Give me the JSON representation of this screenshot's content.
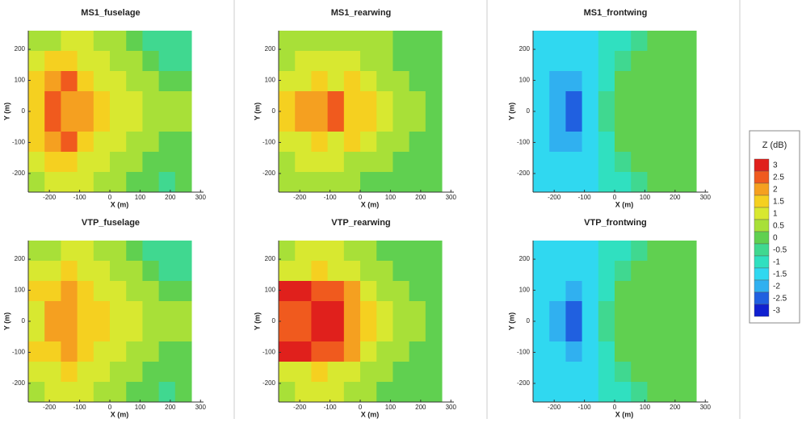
{
  "chart_data": [
    {
      "type": "heatmap",
      "title": "MS1_fuselage",
      "xlabel": "X (m)",
      "ylabel": "Y (m)",
      "x": [
        -243,
        -189,
        -135,
        -81,
        -27,
        27,
        81,
        135,
        189,
        243
      ],
      "y": [
        227.5,
        162.5,
        97.5,
        32.5,
        -32.5,
        -97.5,
        -162.5,
        -227.5
      ],
      "z": [
        [
          0.5,
          0.5,
          1,
          1,
          0.5,
          0.5,
          0,
          -0.5,
          -0.5,
          -0.5
        ],
        [
          1,
          1.5,
          1.5,
          1,
          1,
          0.5,
          0.5,
          0,
          -0.5,
          -0.5
        ],
        [
          1.5,
          2,
          2.5,
          1.5,
          1,
          1,
          0.5,
          0.5,
          0,
          0
        ],
        [
          1.5,
          2.5,
          2,
          2,
          1.5,
          1,
          1,
          0.5,
          0.5,
          0.5
        ],
        [
          1.5,
          2.5,
          2,
          2,
          1.5,
          1,
          1,
          0.5,
          0.5,
          0.5
        ],
        [
          1.5,
          2,
          2.5,
          1.5,
          1,
          1,
          0.5,
          0.5,
          0,
          0
        ],
        [
          1,
          1.5,
          1.5,
          1,
          1,
          0.5,
          0.5,
          0,
          0,
          0
        ],
        [
          0.5,
          1,
          1,
          1,
          0.5,
          0.5,
          0,
          0,
          -0.5,
          0
        ]
      ],
      "xlim": [
        -270,
        310
      ],
      "ylim": [
        -260,
        260
      ],
      "xticks": [
        -200,
        -100,
        0,
        100,
        200,
        300
      ],
      "yticks": [
        -200,
        -100,
        0,
        100,
        200
      ]
    },
    {
      "type": "heatmap",
      "title": "MS1_rearwing",
      "xlabel": "X (m)",
      "ylabel": "Y (m)",
      "x": [
        -243,
        -189,
        -135,
        -81,
        -27,
        27,
        81,
        135,
        189,
        243
      ],
      "y": [
        227.5,
        162.5,
        97.5,
        32.5,
        -32.5,
        -97.5,
        -162.5,
        -227.5
      ],
      "z": [
        [
          0.5,
          0.5,
          0.5,
          0.5,
          0.5,
          0.5,
          0.5,
          0,
          0,
          0
        ],
        [
          0.5,
          1,
          1,
          1,
          1,
          0.5,
          0.5,
          0,
          0,
          0
        ],
        [
          1,
          1,
          1.5,
          1,
          1.5,
          1,
          0.5,
          0.5,
          0,
          0
        ],
        [
          1.5,
          2,
          2,
          2.5,
          1.5,
          1.5,
          1,
          0.5,
          0.5,
          0
        ],
        [
          1.5,
          2,
          2,
          2.5,
          1.5,
          1.5,
          1,
          0.5,
          0.5,
          0
        ],
        [
          1,
          1,
          1.5,
          1,
          1.5,
          1,
          0.5,
          0.5,
          0,
          0
        ],
        [
          0.5,
          1,
          1,
          1,
          0.5,
          0.5,
          0.5,
          0,
          0,
          0
        ],
        [
          0.5,
          0.5,
          0.5,
          0.5,
          0.5,
          0,
          0,
          0,
          0,
          0
        ]
      ],
      "xlim": [
        -270,
        310
      ],
      "ylim": [
        -260,
        260
      ],
      "xticks": [
        -200,
        -100,
        0,
        100,
        200,
        300
      ],
      "yticks": [
        -200,
        -100,
        0,
        100,
        200
      ]
    },
    {
      "type": "heatmap",
      "title": "MS1_frontwing",
      "xlabel": "X (m)",
      "ylabel": "Y (m)",
      "x": [
        -243,
        -189,
        -135,
        -81,
        -27,
        27,
        81,
        135,
        189,
        243
      ],
      "y": [
        227.5,
        162.5,
        97.5,
        32.5,
        -32.5,
        -97.5,
        -162.5,
        -227.5
      ],
      "z": [
        [
          -1.5,
          -1.5,
          -1.5,
          -1.5,
          -1,
          -1,
          -0.5,
          0,
          0,
          0
        ],
        [
          -1.5,
          -1.5,
          -1.5,
          -1.5,
          -1,
          -0.5,
          0,
          0,
          0,
          0
        ],
        [
          -1.5,
          -2,
          -2,
          -1.5,
          -1,
          0,
          0,
          0,
          0,
          0
        ],
        [
          -1.5,
          -2,
          -2.5,
          -1.5,
          -0.5,
          0,
          0,
          0,
          0,
          0
        ],
        [
          -1.5,
          -2,
          -2.5,
          -1.5,
          -0.5,
          0,
          0,
          0,
          0,
          0
        ],
        [
          -1.5,
          -2,
          -2,
          -1.5,
          -1,
          0,
          0,
          0,
          0,
          0
        ],
        [
          -1.5,
          -1.5,
          -1.5,
          -1.5,
          -1,
          -0.5,
          0,
          0,
          0,
          0
        ],
        [
          -1.5,
          -1.5,
          -1.5,
          -1.5,
          -1,
          -1,
          -0.5,
          0,
          0,
          0
        ]
      ],
      "xlim": [
        -270,
        310
      ],
      "ylim": [
        -260,
        260
      ],
      "xticks": [
        -200,
        -100,
        0,
        100,
        200,
        300
      ],
      "yticks": [
        -200,
        -100,
        0,
        100,
        200
      ]
    },
    {
      "type": "heatmap",
      "title": "VTP_fuselage",
      "xlabel": "X (m)",
      "ylabel": "Y (m)",
      "x": [
        -243,
        -189,
        -135,
        -81,
        -27,
        27,
        81,
        135,
        189,
        243
      ],
      "y": [
        227.5,
        162.5,
        97.5,
        32.5,
        -32.5,
        -97.5,
        -162.5,
        -227.5
      ],
      "z": [
        [
          0.5,
          0.5,
          1,
          1,
          0.5,
          0.5,
          0,
          -0.5,
          -0.5,
          -0.5
        ],
        [
          1,
          1,
          1.5,
          1,
          1,
          0.5,
          0.5,
          0,
          -0.5,
          -0.5
        ],
        [
          1.5,
          1.5,
          2,
          1.5,
          1,
          1,
          0.5,
          0.5,
          0,
          0
        ],
        [
          1,
          2,
          2,
          1.5,
          1.5,
          1,
          1,
          0.5,
          0.5,
          0.5
        ],
        [
          1,
          2,
          2,
          1.5,
          1.5,
          1,
          1,
          0.5,
          0.5,
          0.5
        ],
        [
          1.5,
          1.5,
          2,
          1.5,
          1,
          1,
          0.5,
          0.5,
          0,
          0
        ],
        [
          1,
          1,
          1.5,
          1,
          1,
          0.5,
          0.5,
          0,
          0,
          0
        ],
        [
          0.5,
          1,
          1,
          1,
          0.5,
          0.5,
          0,
          0,
          -0.5,
          0
        ]
      ],
      "xlim": [
        -270,
        310
      ],
      "ylim": [
        -260,
        260
      ],
      "xticks": [
        -200,
        -100,
        0,
        100,
        200,
        300
      ],
      "yticks": [
        -200,
        -100,
        0,
        100,
        200
      ]
    },
    {
      "type": "heatmap",
      "title": "VTP_rearwing",
      "xlabel": "X (m)",
      "ylabel": "Y (m)",
      "x": [
        -243,
        -189,
        -135,
        -81,
        -27,
        27,
        81,
        135,
        189,
        243
      ],
      "y": [
        227.5,
        162.5,
        97.5,
        32.5,
        -32.5,
        -97.5,
        -162.5,
        -227.5
      ],
      "z": [
        [
          0.5,
          1,
          1,
          1,
          0.5,
          0.5,
          0,
          0,
          0,
          0
        ],
        [
          1,
          1,
          1.5,
          1,
          1,
          0.5,
          0.5,
          0,
          0,
          0
        ],
        [
          3,
          3,
          2.5,
          2.5,
          2,
          1,
          0.5,
          0.5,
          0,
          0
        ],
        [
          2.5,
          2.5,
          3,
          3,
          2,
          1.5,
          1,
          0.5,
          0.5,
          0
        ],
        [
          2.5,
          2.5,
          3,
          3,
          2,
          1.5,
          1,
          0.5,
          0.5,
          0
        ],
        [
          3,
          3,
          2.5,
          2.5,
          2,
          1,
          0.5,
          0.5,
          0,
          0
        ],
        [
          1,
          1,
          1.5,
          1,
          1,
          0.5,
          0.5,
          0,
          0,
          0
        ],
        [
          0.5,
          1,
          1,
          1,
          0.5,
          0.5,
          0,
          0,
          0,
          0
        ]
      ],
      "xlim": [
        -270,
        310
      ],
      "ylim": [
        -260,
        260
      ],
      "xticks": [
        -200,
        -100,
        0,
        100,
        200,
        300
      ],
      "yticks": [
        -200,
        -100,
        0,
        100,
        200
      ]
    },
    {
      "type": "heatmap",
      "title": "VTP_frontwing",
      "xlabel": "X (m)",
      "ylabel": "Y (m)",
      "x": [
        -243,
        -189,
        -135,
        -81,
        -27,
        27,
        81,
        135,
        189,
        243
      ],
      "y": [
        227.5,
        162.5,
        97.5,
        32.5,
        -32.5,
        -97.5,
        -162.5,
        -227.5
      ],
      "z": [
        [
          -1.5,
          -1.5,
          -1.5,
          -1.5,
          -1,
          -1,
          -0.5,
          0,
          0,
          0
        ],
        [
          -1.5,
          -1.5,
          -1.5,
          -1.5,
          -1,
          -0.5,
          0,
          0,
          0,
          0
        ],
        [
          -1.5,
          -1.5,
          -2,
          -1.5,
          -1,
          0,
          0,
          0,
          0,
          0
        ],
        [
          -1.5,
          -2,
          -2.5,
          -1.5,
          -0.5,
          0,
          0,
          0,
          0,
          0
        ],
        [
          -1.5,
          -2,
          -2.5,
          -1.5,
          -0.5,
          0,
          0,
          0,
          0,
          0
        ],
        [
          -1.5,
          -1.5,
          -2,
          -1.5,
          -1,
          0,
          0,
          0,
          0,
          0
        ],
        [
          -1.5,
          -1.5,
          -1.5,
          -1.5,
          -1,
          -0.5,
          0,
          0,
          0,
          0
        ],
        [
          -1.5,
          -1.5,
          -1.5,
          -1.5,
          -1,
          -1,
          -0.5,
          0,
          0,
          0
        ]
      ],
      "xlim": [
        -270,
        310
      ],
      "ylim": [
        -260,
        260
      ],
      "xticks": [
        -200,
        -100,
        0,
        100,
        200,
        300
      ],
      "yticks": [
        -200,
        -100,
        0,
        100,
        200
      ]
    }
  ],
  "colorbar": {
    "title": "Z (dB)",
    "levels": [
      3,
      2.5,
      2,
      1.5,
      1,
      0.5,
      0,
      -0.5,
      -1,
      -1.5,
      -2,
      -2.5,
      -3
    ],
    "colors": [
      "#e0201c",
      "#f05a1e",
      "#f5a020",
      "#f5d020",
      "#d8e830",
      "#a8e038",
      "#60d050",
      "#40d890",
      "#30e0c0",
      "#30d8f0",
      "#30b0f0",
      "#2060e0",
      "#1020d0"
    ]
  }
}
